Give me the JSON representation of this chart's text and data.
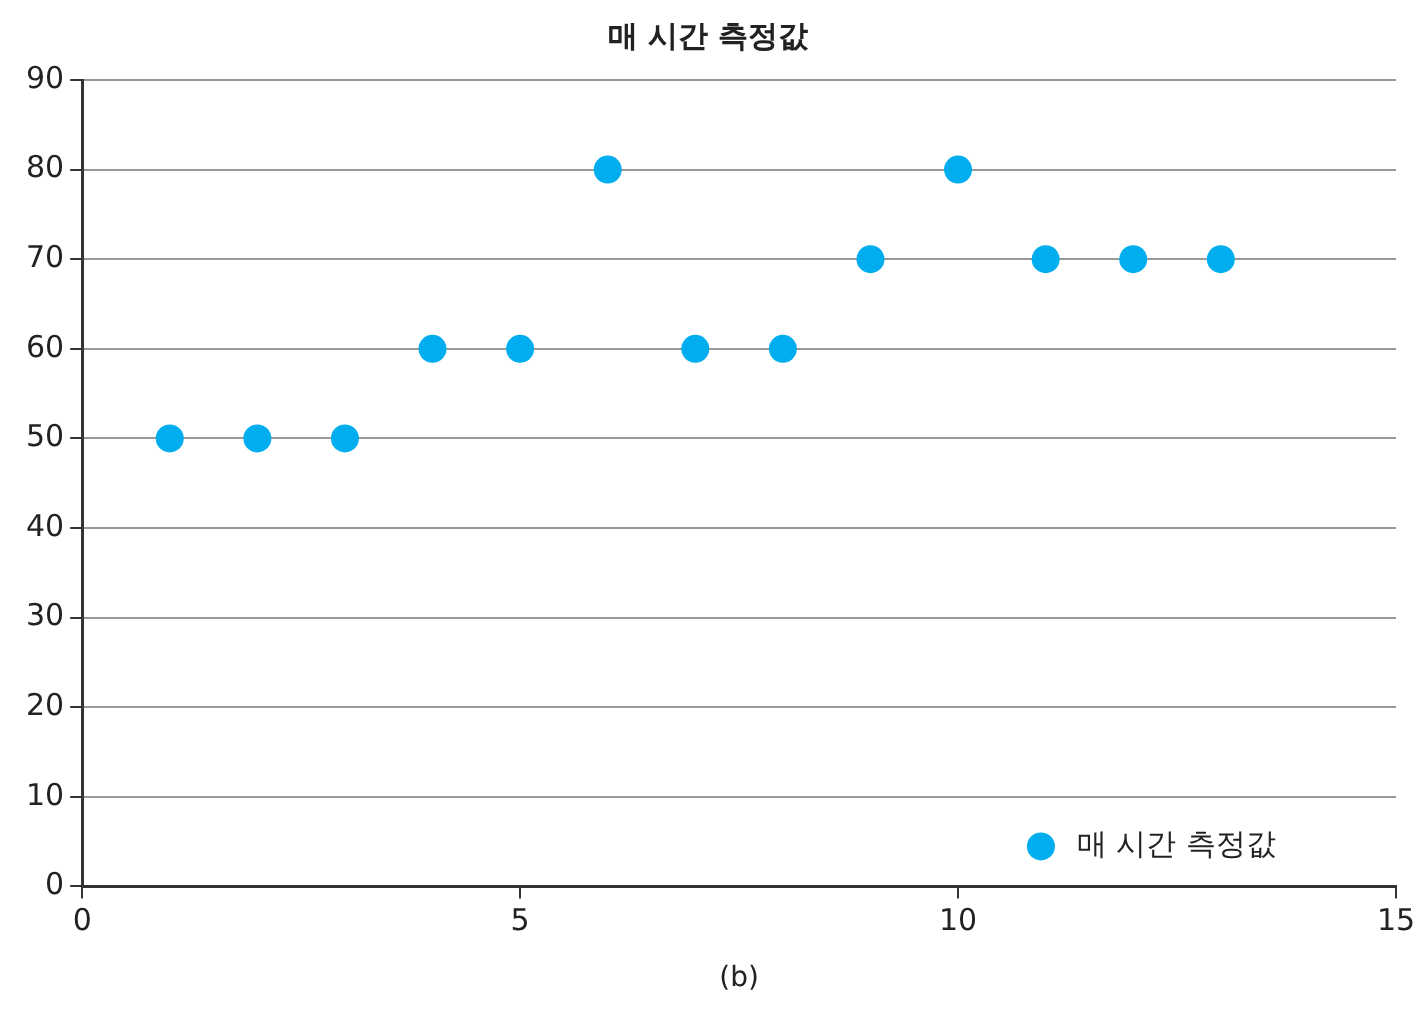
{
  "chart_data": {
    "type": "scatter",
    "title": "매 시간 측정값",
    "xlabel": "(b)",
    "x": [
      1,
      2,
      3,
      4,
      5,
      6,
      7,
      8,
      9,
      10,
      11,
      12,
      13
    ],
    "series": [
      {
        "name": "매 시간 측정값",
        "color": "#00aeef",
        "values": [
          50,
          50,
          50,
          60,
          60,
          80,
          60,
          60,
          70,
          80,
          70,
          70,
          70
        ]
      }
    ],
    "xlim": [
      0,
      15
    ],
    "xticks": [
      0,
      5,
      10,
      15
    ],
    "ylim": [
      0,
      90
    ],
    "yticks": [
      0,
      10,
      20,
      30,
      40,
      50,
      60,
      70,
      80,
      90
    ],
    "grid": "y",
    "legend": "bottom right",
    "marker": "circle"
  }
}
